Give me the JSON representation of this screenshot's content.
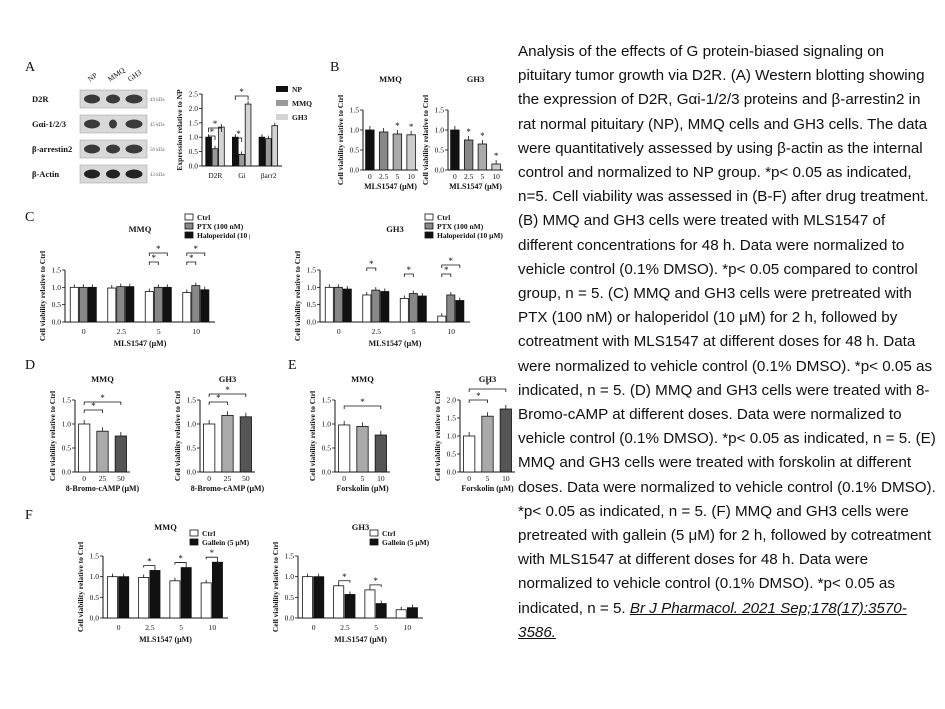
{
  "panels": {
    "A": {
      "label": "A",
      "blot": {
        "lanes": [
          "NP",
          "MMQ",
          "GH3"
        ],
        "rows": [
          {
            "name": "D2R",
            "kda": "49 kDa"
          },
          {
            "name": "Gαi-1/2/3",
            "kda": "45 kDa"
          },
          {
            "name": "β-arrestin2",
            "kda": "50 kDa"
          },
          {
            "name": "β-Actin",
            "kda": "43 kDa"
          }
        ]
      },
      "chart": {
        "ylabel": "Expression relative to NP",
        "yticks": [
          "0.0",
          "0.5",
          "1.0",
          "1.5",
          "2.0",
          "2.5"
        ],
        "ylim": [
          0,
          2.5
        ],
        "categories": [
          "D2R",
          "Gi",
          "βarr2"
        ],
        "legend": [
          "NP",
          "MMQ",
          "GH3"
        ],
        "series_colors": [
          "#111111",
          "#9a9a9a",
          "#d4d4d4"
        ],
        "series": [
          {
            "name": "NP",
            "values": [
              1.0,
              1.0,
              1.0
            ]
          },
          {
            "name": "MMQ",
            "values": [
              0.6,
              0.4,
              0.95
            ]
          },
          {
            "name": "GH3",
            "values": [
              1.35,
              2.15,
              1.4
            ]
          }
        ]
      }
    },
    "B": {
      "label": "B",
      "charts": [
        {
          "title": "MMQ",
          "ylabel": "Cell viability relative to Ctrl",
          "xlabel": "MLS1547 (μM)",
          "categories": [
            "0",
            "2.5",
            "5",
            "10"
          ],
          "values": [
            1.0,
            0.95,
            0.9,
            0.88
          ],
          "stars": [
            "",
            "",
            "*",
            "*"
          ],
          "yticks": [
            "0.0",
            "0.5",
            "1.0",
            "1.5"
          ],
          "ylim": [
            0,
            1.5
          ],
          "colors": [
            "#111111",
            "#888888",
            "#aaaaaa",
            "#cccccc"
          ]
        },
        {
          "title": "GH3",
          "ylabel": "Cell viability relative to Ctrl",
          "xlabel": "MLS1547 (μM)",
          "categories": [
            "0",
            "2.5",
            "5",
            "10"
          ],
          "values": [
            1.0,
            0.75,
            0.65,
            0.15
          ],
          "stars": [
            "",
            "*",
            "*",
            "*"
          ],
          "yticks": [
            "0.0",
            "0.5",
            "1.0",
            "1.5"
          ],
          "ylim": [
            0,
            1.5
          ],
          "colors": [
            "#111111",
            "#888888",
            "#aaaaaa",
            "#cccccc"
          ]
        }
      ]
    },
    "C": {
      "label": "C",
      "legend": [
        "Ctrl",
        "PTX (100 nM)",
        "Haloperidol (10 μM)"
      ],
      "charts": [
        {
          "title": "MMQ",
          "ylabel": "Cell viability relative to Ctrl",
          "xlabel": "MLS1547 (μM)",
          "categories": [
            "0",
            "2.5",
            "5",
            "10"
          ],
          "yticks": [
            "0.0",
            "0.5",
            "1.0",
            "1.5"
          ],
          "ylim": [
            0,
            1.5
          ],
          "series": [
            {
              "name": "Ctrl",
              "values": [
                1.0,
                0.98,
                0.88,
                0.85
              ]
            },
            {
              "name": "PTX (100 nM)",
              "values": [
                1.0,
                1.02,
                1.0,
                1.05
              ]
            },
            {
              "name": "Haloperidol (10 μM)",
              "values": [
                1.0,
                1.02,
                1.0,
                0.93
              ]
            }
          ]
        },
        {
          "title": "GH3",
          "ylabel": "Cell viability relative to Ctrl",
          "xlabel": "MLS1547 (μM)",
          "categories": [
            "0",
            "2.5",
            "5",
            "10"
          ],
          "yticks": [
            "0.0",
            "0.5",
            "1.0",
            "1.5"
          ],
          "ylim": [
            0,
            1.5
          ],
          "series": [
            {
              "name": "Ctrl",
              "values": [
                1.0,
                0.78,
                0.68,
                0.17
              ]
            },
            {
              "name": "PTX (100 nM)",
              "values": [
                1.0,
                0.92,
                0.82,
                0.78
              ]
            },
            {
              "name": "Haloperidol (10 μM)",
              "values": [
                0.95,
                0.88,
                0.75,
                0.62
              ]
            }
          ]
        }
      ]
    },
    "D": {
      "label": "D",
      "charts": [
        {
          "title": "MMQ",
          "ylabel": "Cell viability relative to Ctrl",
          "xlabel": "8-Bromo-cAMP (μM)",
          "categories": [
            "0",
            "25",
            "50"
          ],
          "values": [
            1.0,
            0.85,
            0.75
          ],
          "yticks": [
            "0.0",
            "0.5",
            "1.0",
            "1.5"
          ],
          "ylim": [
            0,
            1.5
          ],
          "colors": [
            "#ffffff",
            "#aaaaaa",
            "#555555"
          ]
        },
        {
          "title": "GH3",
          "ylabel": "Cell viability relative to Ctrl",
          "xlabel": "8-Bromo-cAMP (μM)",
          "categories": [
            "0",
            "25",
            "50"
          ],
          "values": [
            1.0,
            1.18,
            1.15
          ],
          "yticks": [
            "0.0",
            "0.5",
            "1.0",
            "1.5"
          ],
          "ylim": [
            0,
            1.5
          ],
          "colors": [
            "#ffffff",
            "#aaaaaa",
            "#555555"
          ]
        }
      ]
    },
    "E": {
      "label": "E",
      "charts": [
        {
          "title": "MMQ",
          "ylabel": "Cell viability relative to Ctrl",
          "xlabel": "Forskolin (μM)",
          "categories": [
            "0",
            "5",
            "10"
          ],
          "values": [
            0.98,
            0.95,
            0.77
          ],
          "yticks": [
            "0.0",
            "0.5",
            "1.0",
            "1.5"
          ],
          "ylim": [
            0,
            1.5
          ],
          "colors": [
            "#ffffff",
            "#aaaaaa",
            "#555555"
          ]
        },
        {
          "title": "GH3",
          "ylabel": "Cell viability relative to Ctrl",
          "xlabel": "Forskolin (μM)",
          "categories": [
            "0",
            "5",
            "10"
          ],
          "values": [
            1.0,
            1.55,
            1.75
          ],
          "yticks": [
            "0.0",
            "0.5",
            "1.0",
            "1.5",
            "2.0"
          ],
          "ylim": [
            0,
            2.0
          ],
          "colors": [
            "#ffffff",
            "#aaaaaa",
            "#555555"
          ]
        }
      ]
    },
    "F": {
      "label": "F",
      "legend": [
        "Ctrl",
        "Gallein (5 μM)"
      ],
      "charts": [
        {
          "title": "MMQ",
          "ylabel": "Cell viability relative to Ctrl",
          "xlabel": "MLS1547 (μM)",
          "categories": [
            "0",
            "2.5",
            "5",
            "10"
          ],
          "yticks": [
            "0.0",
            "0.5",
            "1.0",
            "1.5"
          ],
          "ylim": [
            0,
            1.5
          ],
          "series": [
            {
              "name": "Ctrl",
              "values": [
                1.0,
                0.98,
                0.9,
                0.85
              ]
            },
            {
              "name": "Gallein (5 μM)",
              "values": [
                1.0,
                1.15,
                1.22,
                1.35
              ]
            }
          ]
        },
        {
          "title": "GH3",
          "ylabel": "Cell viability relative to Ctrl",
          "xlabel": "MLS1547 (μM)",
          "categories": [
            "0",
            "2.5",
            "5",
            "10"
          ],
          "yticks": [
            "0.0",
            "0.5",
            "1.0",
            "1.5"
          ],
          "ylim": [
            0,
            1.5
          ],
          "series": [
            {
              "name": "Ctrl",
              "values": [
                1.0,
                0.78,
                0.68,
                0.2
              ]
            },
            {
              "name": "Gallein (5 μM)",
              "values": [
                1.0,
                0.57,
                0.35,
                0.25
              ]
            }
          ]
        }
      ]
    }
  },
  "caption": {
    "text": "Analysis of the effects of G protein-biased signaling on pituitary tumor growth via D2R. (A) Western blotting showing the expression of D2R, Gαi-1/2/3 proteins and β-arrestin2 in rat normal pituitary (NP), MMQ cells and GH3 cells. The data were quantitatively assessed by using β-actin as the internal control and normalized to NP group. *p< 0.05 as indicated, n=5. Cell viability was assessed in (B-F) after drug treatment. (B) MMQ and GH3 cells were treated with MLS1547 of different concentrations for 48 h. Data were normalized to vehicle control (0.1% DMSO). *p< 0.05 compared to control group, n = 5. (C) MMQ and GH3 cells were pretreated with PTX (100 nM) or haloperidol (10 μM) for 2 h, followed by cotreatment with MLS1547 at different doses for 48 h. Data were normalized to vehicle control (0.1% DMSO). *p< 0.05 as indicated, n = 5. (D) MMQ and GH3 cells were treated with 8-Bromo-cAMP at different doses. Data were normalized to vehicle control (0.1% DMSO). *p< 0.05 as indicated, n = 5. (E) MMQ and GH3 cells were treated with forskolin at different doses. Data were normalized to vehicle control (0.1% DMSO). *p< 0.05 as indicated, n = 5. (F) MMQ and GH3 cells were pretreated with gallein (5 μM) for 2 h, followed by cotreatment with MLS1547 at different doses for 48 h. Data were normalized to vehicle control (0.1% DMSO). *p< 0.05 as indicated, n = 5. ",
    "source": "Br J Pharmacol. 2021 Sep;178(17):3570-3586."
  }
}
